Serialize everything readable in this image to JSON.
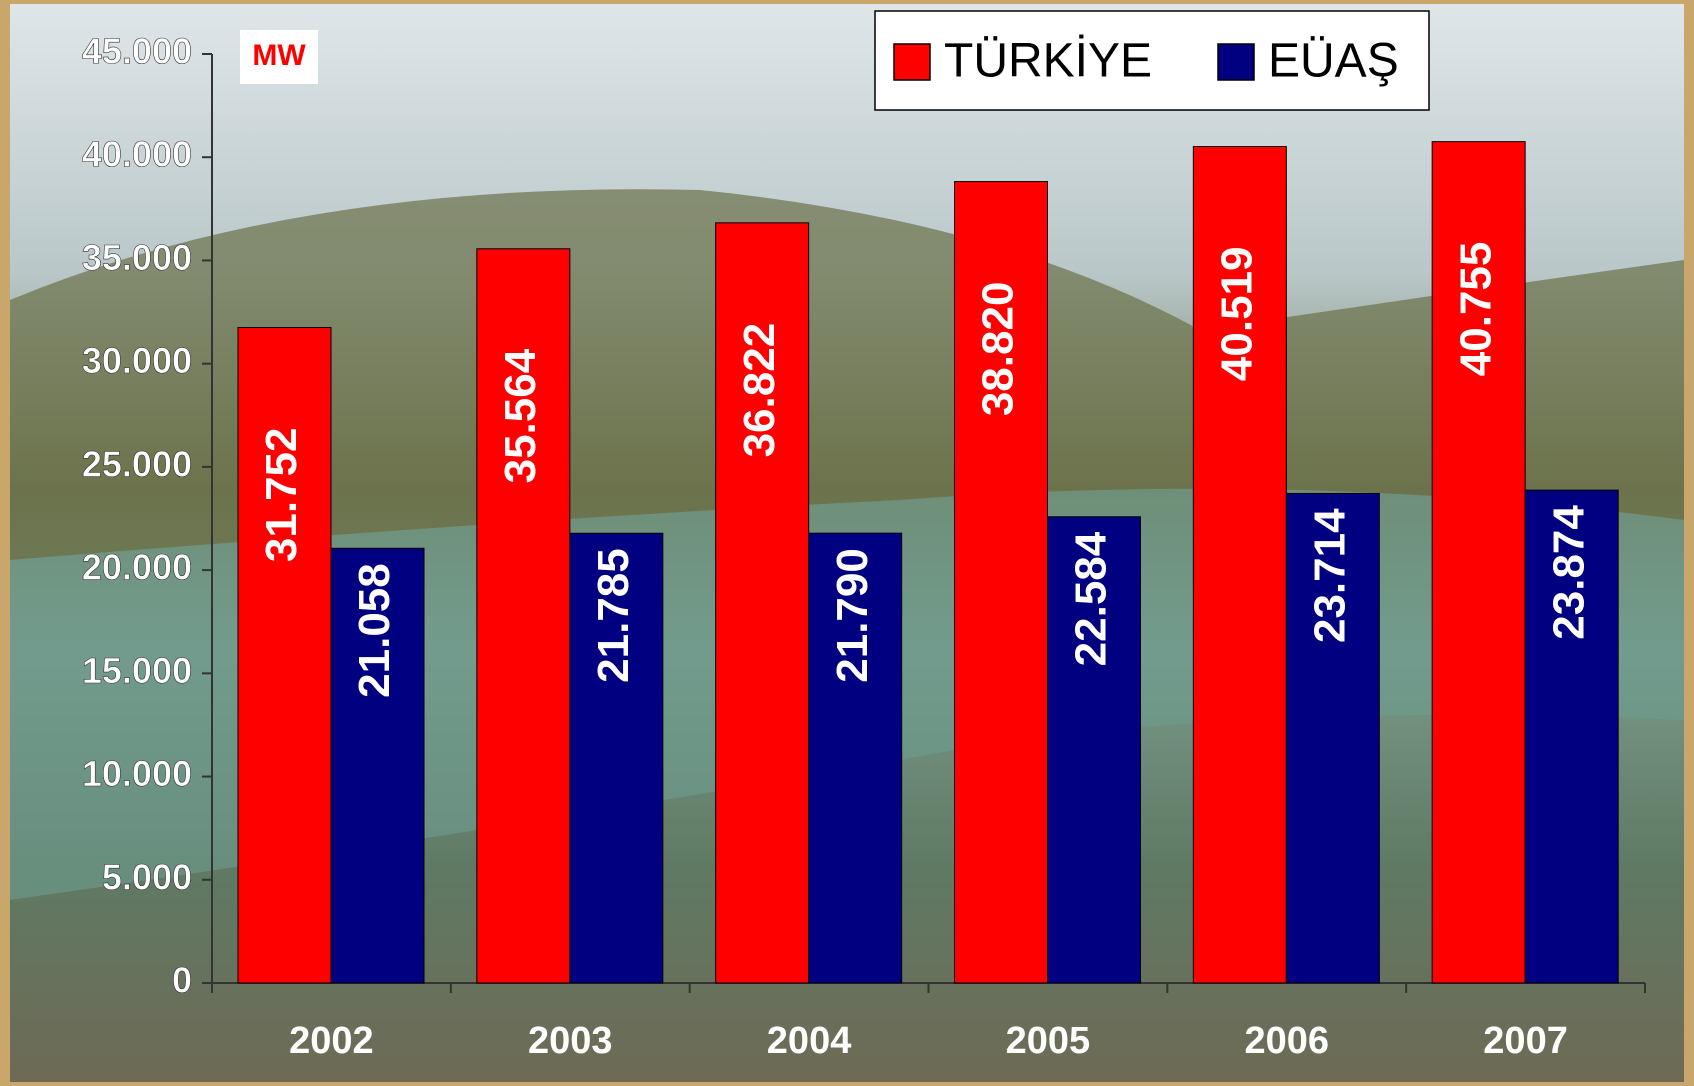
{
  "chart_data": {
    "type": "bar",
    "annotation": "MW",
    "categories": [
      "2002",
      "2003",
      "2004",
      "2005",
      "2006",
      "2007"
    ],
    "series": [
      {
        "name": "TÜRKİYE",
        "color": "#ff0000",
        "values": [
          31752,
          35564,
          36822,
          38820,
          40519,
          40755
        ],
        "value_labels": [
          "31.752",
          "35.564",
          "36.822",
          "38.820",
          "40.519",
          "40.755"
        ]
      },
      {
        "name": "EÜAŞ",
        "color": "#000080",
        "values": [
          21058,
          21785,
          21790,
          22584,
          23714,
          23874
        ],
        "value_labels": [
          "21.058",
          "21.785",
          "21.790",
          "22.584",
          "23.714",
          "23.874"
        ]
      }
    ],
    "ylim": [
      0,
      45000
    ],
    "yticks": [
      0,
      {
        "value": 5000,
        "label": "5.000"
      },
      {
        "value": 10000,
        "label": "10.000"
      },
      {
        "value": 15000,
        "label": "15.000"
      },
      {
        "value": 20000,
        "label": "20.000"
      },
      {
        "value": 25000,
        "label": "25.000"
      },
      {
        "value": 30000,
        "label": "30.000"
      },
      {
        "value": 35000,
        "label": "35.000"
      },
      {
        "value": 40000,
        "label": "40.000"
      },
      {
        "value": 45000,
        "label": "45.000"
      }
    ],
    "legend": "top-right"
  }
}
